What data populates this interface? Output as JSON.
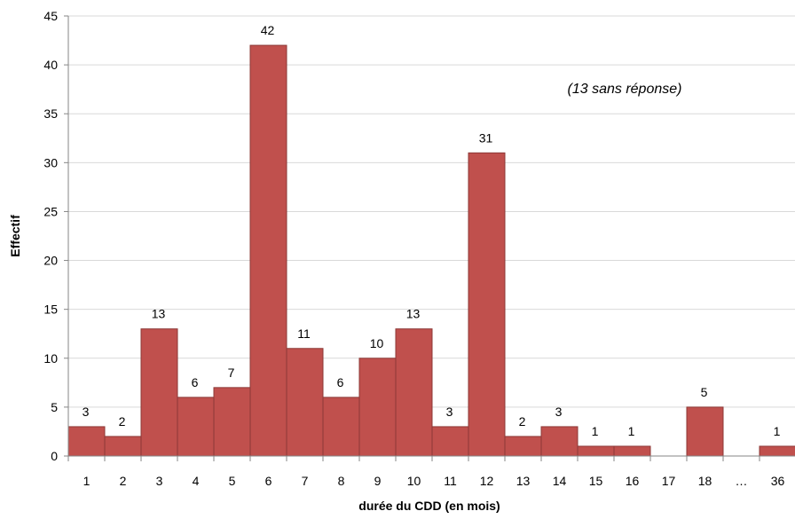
{
  "chart_data": {
    "type": "bar",
    "categories": [
      "1",
      "2",
      "3",
      "4",
      "5",
      "6",
      "7",
      "8",
      "9",
      "10",
      "11",
      "12",
      "13",
      "14",
      "15",
      "16",
      "17",
      "18",
      "…",
      "36"
    ],
    "values": [
      3,
      2,
      13,
      6,
      7,
      42,
      11,
      6,
      10,
      13,
      3,
      31,
      2,
      3,
      1,
      1,
      0,
      5,
      0,
      1
    ],
    "data_labels": [
      "3",
      "2",
      "13",
      "6",
      "7",
      "42",
      "11",
      "6",
      "10",
      "13",
      "3",
      "31",
      "2",
      "3",
      "1",
      "1",
      "",
      "5",
      "",
      "1"
    ],
    "title": "",
    "xlabel": "durée du CDD (en mois)",
    "ylabel": "Effectif",
    "ylim": [
      0,
      45
    ],
    "yticks": [
      0,
      5,
      10,
      15,
      20,
      25,
      30,
      35,
      40,
      45
    ],
    "annotation": "(13 sans réponse)",
    "grid": true,
    "legend": "none",
    "colors": {
      "bar_fill": "#c0504d",
      "bar_stroke": "#8c3836",
      "grid": "#d9d9d9",
      "axis": "#868686"
    }
  }
}
